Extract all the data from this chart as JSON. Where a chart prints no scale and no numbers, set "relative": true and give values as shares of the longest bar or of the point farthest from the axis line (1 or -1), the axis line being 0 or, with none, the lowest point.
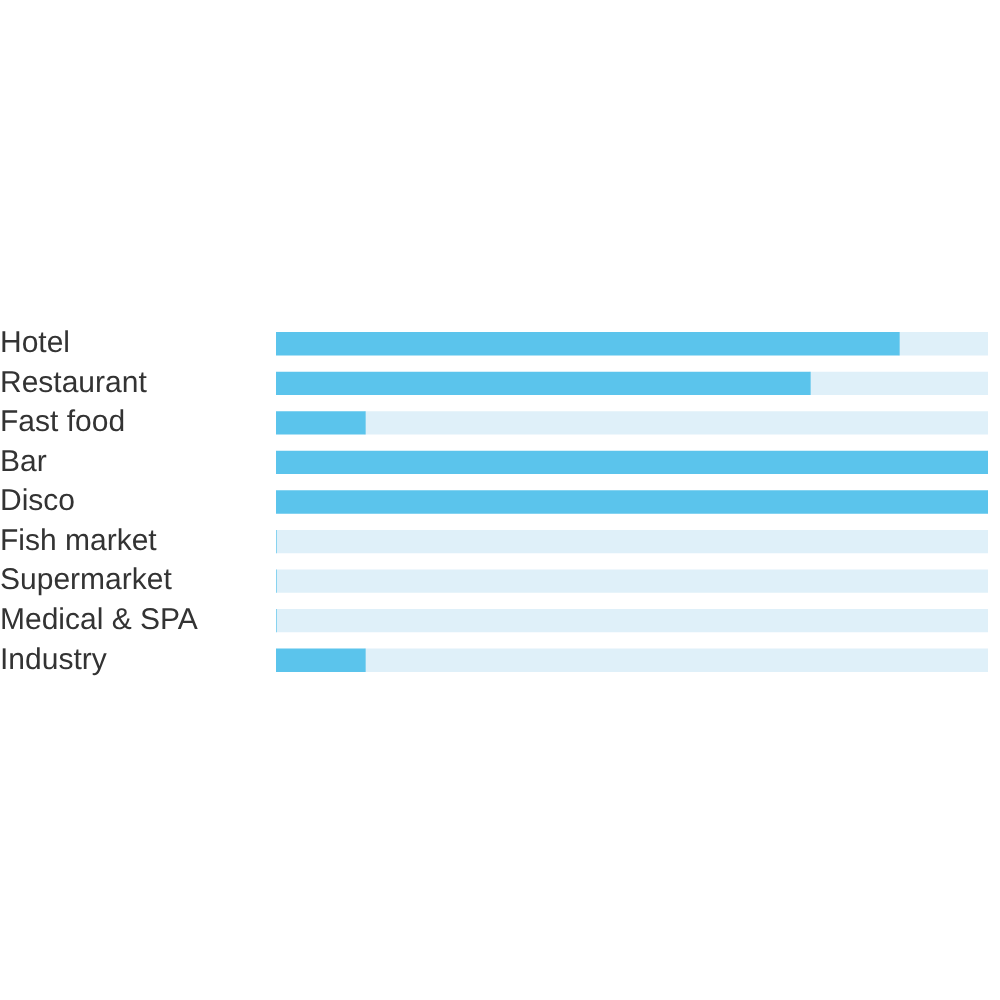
{
  "chart_data": {
    "type": "bar",
    "orientation": "horizontal",
    "stacked": true,
    "relative": true,
    "categories": [
      "Hotel",
      "Restaurant",
      "Fast food",
      "Bar",
      "Disco",
      "Fish market",
      "Supermarket",
      "Medical & SPA",
      "Industry"
    ],
    "series": [
      {
        "color": "#5bc4ec",
        "values": [
          0.875,
          0.75,
          0.125,
          1,
          1,
          0,
          0,
          0,
          0.125
        ]
      },
      {
        "color": "#dff0f9",
        "values": [
          0.125,
          0.25,
          0.875,
          0,
          0,
          1,
          1,
          1,
          0.875
        ]
      }
    ],
    "grid": false,
    "legend": false
  }
}
